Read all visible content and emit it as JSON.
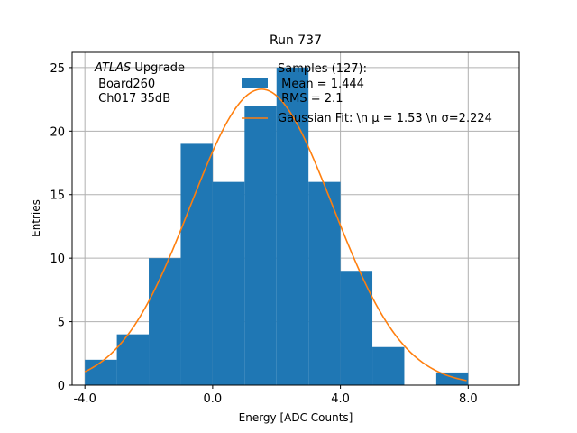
{
  "chart_data": {
    "type": "bar",
    "title": "Run 737",
    "xlabel": "Energy [ADC Counts]",
    "ylabel": "Entries",
    "xlim": [
      -4.4,
      9.6
    ],
    "ylim": [
      0,
      26.2
    ],
    "grid": true,
    "x_ticks": [
      -4.0,
      0.0,
      4.0,
      8.0
    ],
    "x_tick_labels": [
      "-4.0",
      "0.0",
      "4.0",
      "8.0"
    ],
    "y_ticks": [
      0,
      5,
      10,
      15,
      20,
      25
    ],
    "y_tick_labels": [
      "0",
      "5",
      "10",
      "15",
      "20",
      "25"
    ],
    "bin_edges": [
      -4,
      -3,
      -2,
      -1,
      0,
      1,
      2,
      3,
      4,
      5,
      6,
      7,
      8,
      9
    ],
    "counts": [
      2,
      4,
      10,
      19,
      16,
      22,
      25,
      16,
      9,
      3,
      0,
      1,
      0
    ],
    "fit": {
      "amplitude": 23.3,
      "mu": 1.53,
      "sigma": 2.224,
      "x_range": [
        -4.0,
        7.95
      ]
    },
    "colors": {
      "hist": "#1f77b4",
      "fit": "#ff7f0e",
      "grid": "#b0b0b0"
    },
    "annotation": {
      "line1_italic": "ATLAS",
      "line1_rest": " Upgrade",
      "line2": " Board260",
      "line3": " Ch017 35dB"
    },
    "legend": {
      "placement": "top-center",
      "hist_lines": [
        "Samples (127):",
        " Mean = 1.444",
        " RMS = 2.1"
      ],
      "fit_label": "Gaussian Fit: \\n μ = 1.53 \\n σ=2.224"
    }
  }
}
